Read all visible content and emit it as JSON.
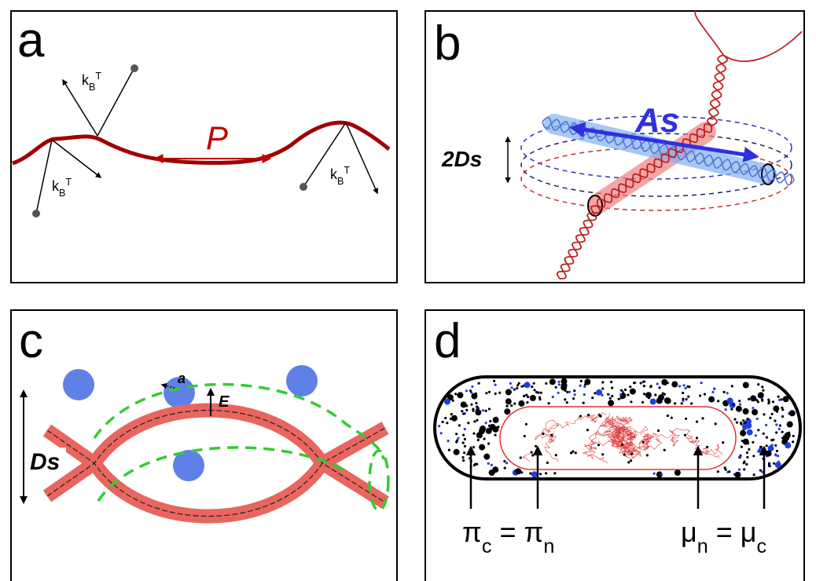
{
  "panels": [
    {
      "label": "a",
      "labels": [
        {
          "parts": [
            {
              "text": "k"
            },
            {
              "text": "B",
              "sub": true
            },
            {
              "text": "T",
              "sup": true
            }
          ]
        },
        {
          "parts": [
            {
              "text": "k"
            },
            {
              "text": "B",
              "sub": true
            },
            {
              "text": "T",
              "sup": true
            }
          ]
        },
        {
          "parts": [
            {
              "text": "k"
            },
            {
              "text": "B",
              "sub": true
            },
            {
              "text": "T",
              "sup": true
            }
          ]
        },
        {
          "parts": [
            {
              "text": "P"
            }
          ]
        }
      ]
    },
    {
      "label": "b",
      "labels": [
        {
          "parts": [
            {
              "text": "As"
            }
          ]
        },
        {
          "parts": [
            {
              "text": "2Ds"
            }
          ]
        }
      ]
    },
    {
      "label": "c",
      "labels": [
        {
          "parts": [
            {
              "text": "a"
            }
          ]
        },
        {
          "parts": [
            {
              "text": "E"
            }
          ]
        },
        {
          "parts": [
            {
              "text": "Ds"
            }
          ]
        }
      ]
    },
    {
      "label": "d",
      "labels": [
        {
          "parts": [
            {
              "text": "π"
            },
            {
              "text": "c",
              "sub": true
            },
            {
              "text": " = π"
            },
            {
              "text": "n",
              "sub": true
            }
          ]
        },
        {
          "parts": [
            {
              "text": "μ"
            },
            {
              "text": "n",
              "sub": true
            },
            {
              "text": " = μ"
            },
            {
              "text": "c",
              "sub": true
            }
          ]
        }
      ]
    }
  ]
}
